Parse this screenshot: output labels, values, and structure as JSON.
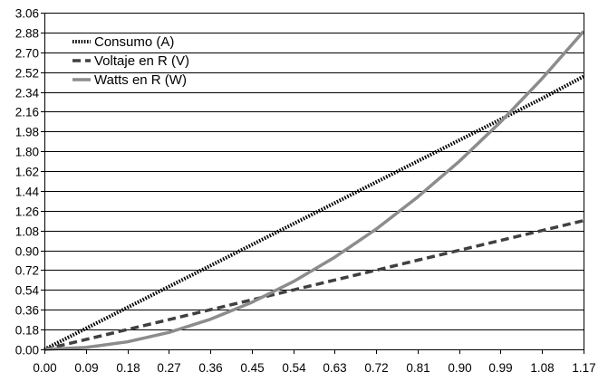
{
  "chart_data": {
    "type": "line",
    "title": "",
    "xlabel": "",
    "ylabel": "",
    "xlim": [
      0,
      1.17
    ],
    "ylim": [
      0,
      3.06
    ],
    "x_ticks": [
      "0.00",
      "0.09",
      "0.18",
      "0.27",
      "0.36",
      "0.45",
      "0.54",
      "0.63",
      "0.72",
      "0.81",
      "0.90",
      "0.99",
      "1.08",
      "1.17"
    ],
    "y_ticks": [
      "0.00",
      "0.18",
      "0.36",
      "0.54",
      "0.72",
      "0.90",
      "1.08",
      "1.26",
      "1.44",
      "1.62",
      "1.80",
      "1.98",
      "2.16",
      "2.34",
      "2.52",
      "2.70",
      "2.88",
      "3.06"
    ],
    "grid": "horizontal",
    "legend_position": "top-left",
    "series": [
      {
        "name": "Consumo (A)",
        "style": "dotted",
        "color": "#000000",
        "x": [
          0,
          0.09,
          0.18,
          0.27,
          0.36,
          0.45,
          0.54,
          0.63,
          0.72,
          0.81,
          0.9,
          0.99,
          1.08,
          1.17
        ],
        "y": [
          0,
          0.19,
          0.38,
          0.57,
          0.76,
          0.95,
          1.14,
          1.33,
          1.52,
          1.71,
          1.9,
          2.09,
          2.28,
          2.48
        ]
      },
      {
        "name": "Voltaje en R (V)",
        "style": "dashed",
        "color": "#404040",
        "x": [
          0,
          0.09,
          0.18,
          0.27,
          0.36,
          0.45,
          0.54,
          0.63,
          0.72,
          0.81,
          0.9,
          0.99,
          1.08,
          1.17
        ],
        "y": [
          0,
          0.09,
          0.18,
          0.27,
          0.36,
          0.45,
          0.54,
          0.63,
          0.72,
          0.81,
          0.9,
          0.99,
          1.08,
          1.17
        ]
      },
      {
        "name": "Watts en R (W)",
        "style": "solid",
        "color": "#8c8c8c",
        "x": [
          0,
          0.09,
          0.18,
          0.27,
          0.36,
          0.45,
          0.54,
          0.63,
          0.72,
          0.81,
          0.9,
          0.99,
          1.08,
          1.17
        ],
        "y": [
          0,
          0.017,
          0.068,
          0.154,
          0.273,
          0.427,
          0.615,
          0.837,
          1.093,
          1.384,
          1.708,
          2.067,
          2.46,
          2.89
        ]
      }
    ]
  }
}
